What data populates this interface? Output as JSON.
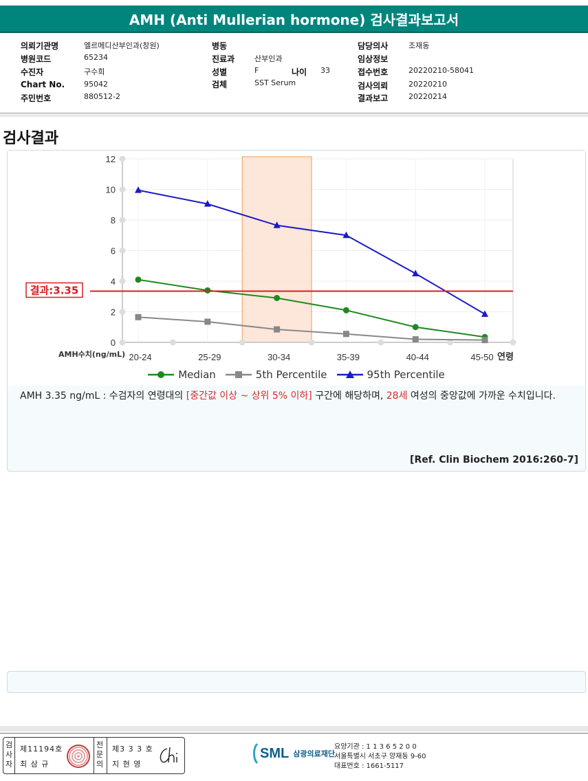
{
  "report": {
    "title": "AMH (Anti Mullerian hormone) 검사결과보고서"
  },
  "info": {
    "institution_label": "의뢰기관명",
    "institution": "엘르메디산부인과(창원)",
    "hospital_code_label": "병원코드",
    "hospital_code": "65234",
    "patient_label": "수진자",
    "patient": "구수희",
    "chart_no_label": "Chart No.",
    "chart_no": "95042",
    "resident_no_label": "주민번호",
    "resident_no": "880512-2",
    "ward_label": "병동",
    "ward": "",
    "department_label": "진료과",
    "department": "산부인과",
    "sex_label": "성별",
    "sex": "F",
    "age_label": "나이",
    "age": "33",
    "specimen_label": "검체",
    "specimen": "SST Serum",
    "doctor_label": "담당의사",
    "doctor": "조재동",
    "clinical_label": "임상정보",
    "clinical": "",
    "receipt_label": "접수번호",
    "receipt": "20220210-58041",
    "request_label": "검사의뢰",
    "request": "20220210",
    "report_date_label": "결과보고",
    "report_date": "20220214"
  },
  "section": {
    "title": "검사결과"
  },
  "chart_data": {
    "type": "line",
    "categories": [
      "20-24",
      "25-29",
      "30-34",
      "35-39",
      "40-44",
      "45-50"
    ],
    "xlabel": "연령",
    "ylabel": "AMH수치(ng/mL)",
    "ylim": [
      0,
      12
    ],
    "yticks": [
      "0",
      "2",
      "4",
      "6",
      "8",
      "10",
      "12"
    ],
    "grid": true,
    "highlight_category": "30-34",
    "result_line": {
      "value": 3.35,
      "label": "결과:3.35"
    },
    "series": [
      {
        "name": "Median",
        "values": [
          4.1,
          3.4,
          2.9,
          2.1,
          1.0,
          0.35
        ],
        "color": "#1e8a1e",
        "marker": "circle"
      },
      {
        "name": "5th Percentile",
        "values": [
          1.65,
          1.35,
          0.85,
          0.55,
          0.2,
          0.15
        ],
        "color": "#888888",
        "marker": "square"
      },
      {
        "name": "95th Percentile",
        "values": [
          9.95,
          9.05,
          7.65,
          7.0,
          4.5,
          1.85
        ],
        "color": "#1a1ac8",
        "marker": "triangle"
      }
    ],
    "legend_position": "bottom"
  },
  "interpretation": {
    "part1": "AMH  3.35 ng/mL : 수검자의 연령대의 ",
    "red1": "[중간값 이상 ~ 상위 5% 이하]",
    "part2": "  구간에 해당하며, ",
    "red2": "28세",
    "part3": " 여성의 중앙값에 가까운 수치입니다."
  },
  "reference": "[Ref. Clin Biochem 2016:260-7]",
  "signature": {
    "tester_label": "검사자",
    "tester_no": "제11194호",
    "tester_name": "최 삼 규",
    "specialist_label": "전문의",
    "specialist_no": "제3 3 3 호",
    "specialist_name": "지 현 영"
  },
  "footer": {
    "logo": "SML",
    "org_name": "삼광의료재단",
    "agency_code": "요양기관 : 1 1 3 6 5 2 0 0",
    "address": "서울특별시 서초구 양재동 9-60",
    "phone": "대표번호 : 1661-5117"
  }
}
